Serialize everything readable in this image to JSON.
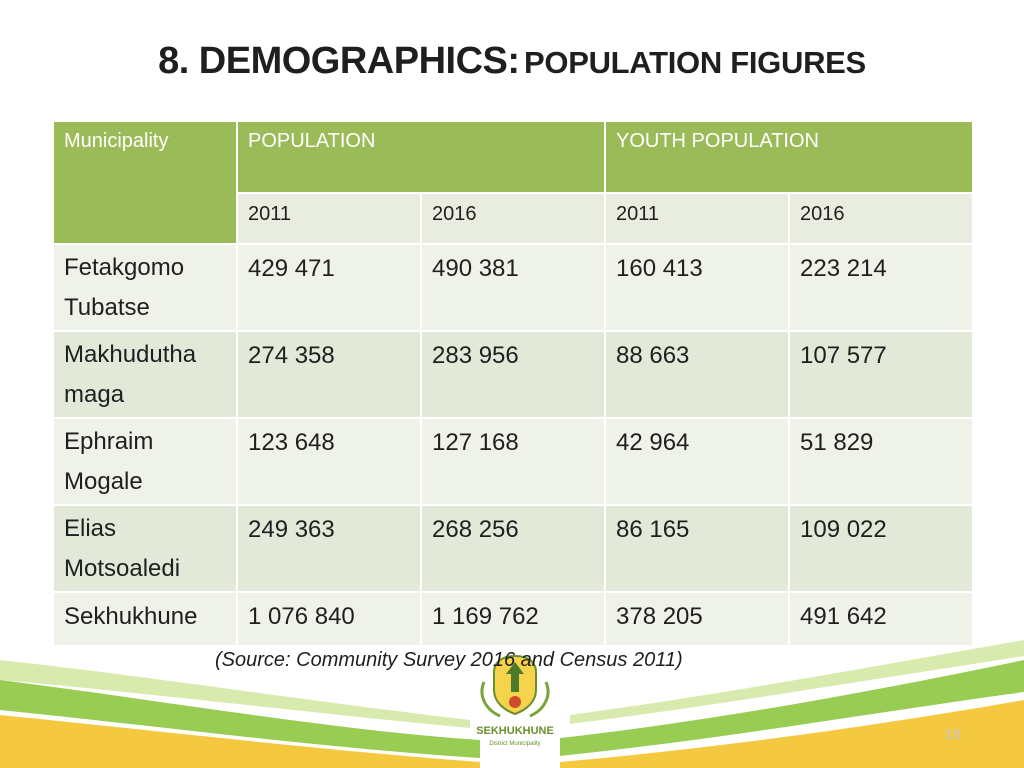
{
  "title": {
    "main": "8. DEMOGRAPHICS:",
    "sub": "POPULATION FIGURES"
  },
  "table": {
    "headers": {
      "municipality": "Municipality",
      "population": "POPULATION",
      "youth": "YOUTH POPULATION"
    },
    "years": [
      "2011",
      "2016",
      "2011",
      "2016"
    ],
    "rows": [
      {
        "name": "Fetakgomo Tubatse",
        "values": [
          "429 471",
          "490 381",
          "160 413",
          "223 214"
        ]
      },
      {
        "name": "Makhudutha maga",
        "values": [
          "274 358",
          "283 956",
          "88 663",
          "107 577"
        ]
      },
      {
        "name": "Ephraim Mogale",
        "values": [
          "123 648",
          "127 168",
          "42 964",
          "51 829"
        ]
      },
      {
        "name": "Elias Motsoaledi",
        "values": [
          "249 363",
          "268 256",
          "86 165",
          "109 022"
        ]
      },
      {
        "name": "Sekhukhune",
        "values": [
          "1 076 840",
          "1 169 762",
          "378 205",
          "491 642"
        ]
      }
    ]
  },
  "source": "(Source: Community Survey 2016 and Census 2011)",
  "logo": {
    "name": "SEKHUKHUNE",
    "subtitle": "District Municipality"
  },
  "page_number": "18",
  "colors": {
    "header_green": "#9bbb59",
    "row_light": "#eef2e8",
    "row_dark": "#e3e9d9"
  }
}
